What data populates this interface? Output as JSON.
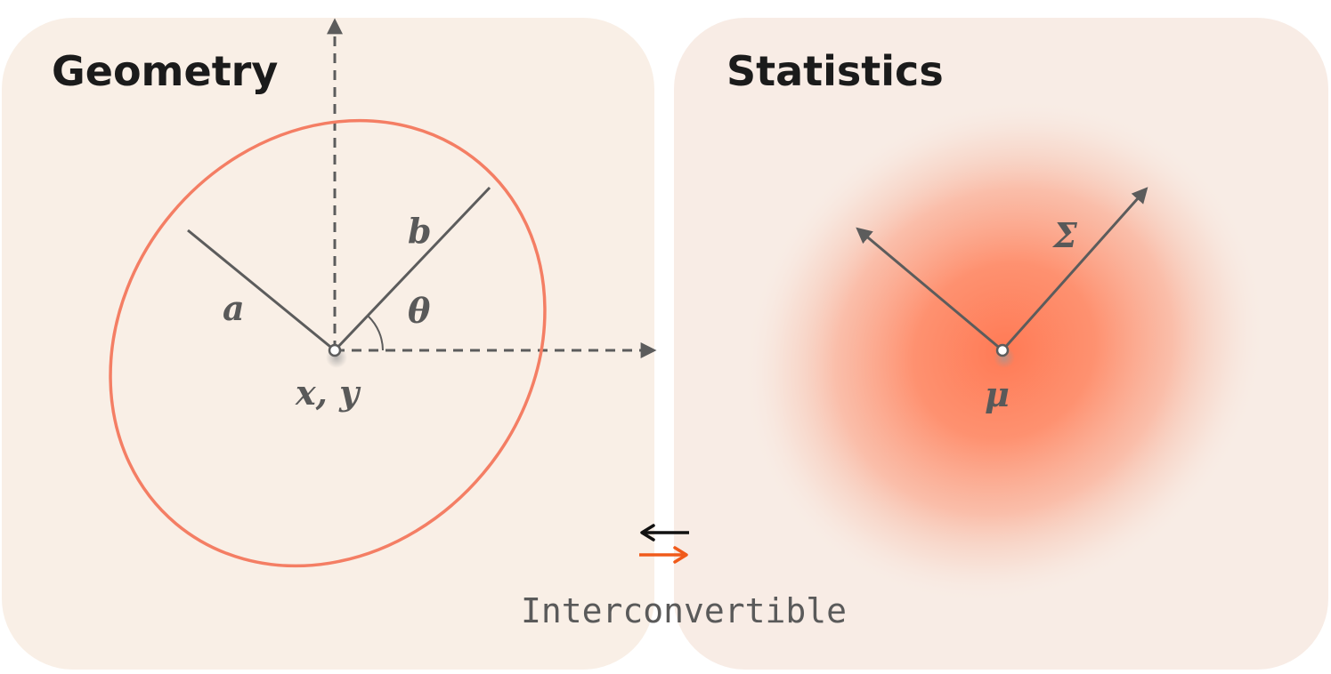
{
  "geometry_panel": {
    "title": "Geometry",
    "labels": {
      "a": "a",
      "b": "b",
      "theta": "θ",
      "center": "x, y"
    }
  },
  "statistics_panel": {
    "title": "Statistics",
    "labels": {
      "sigma": "Σ",
      "mu": "μ"
    }
  },
  "connector": {
    "caption": "Interconvertible"
  },
  "colors": {
    "panel_background": "#f9efe6",
    "ellipse_stroke": "#f47e64",
    "gaussian_core": "#ff7a55",
    "axis_gray": "#5c5c5c",
    "arrow_black": "#111111",
    "arrow_orange": "#f05a1a"
  }
}
